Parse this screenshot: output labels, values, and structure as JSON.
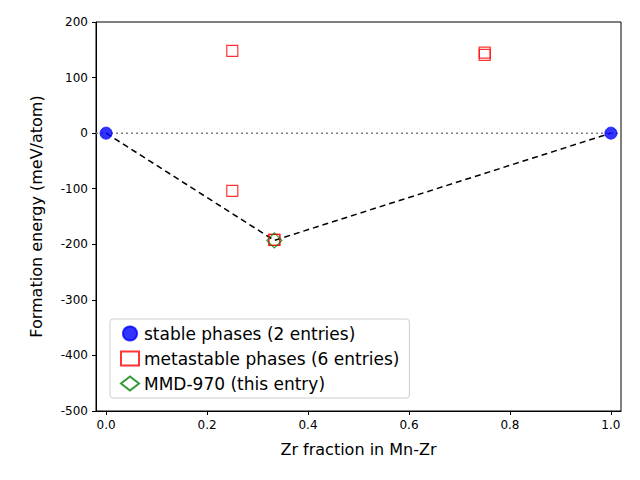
{
  "chart_data": {
    "type": "scatter",
    "x_label": "Zr fraction in Mn-Zr",
    "y_label": "Formation energy (meV/atom)",
    "xlim": [
      -0.02,
      1.02
    ],
    "xticks": [
      {
        "value": 0,
        "label": "0.0"
      },
      {
        "value": 0.2,
        "label": "0.2"
      },
      {
        "value": 0.4,
        "label": "0.4"
      },
      {
        "value": 0.6,
        "label": "0.6"
      },
      {
        "value": 0.8,
        "label": "0.8"
      },
      {
        "value": 1,
        "label": "1.0"
      }
    ],
    "ylim": [
      -500,
      200
    ],
    "yticks": [
      -500,
      -400,
      -300,
      -200,
      -100,
      0,
      100,
      200
    ],
    "grid": false,
    "legend": "lower left",
    "series": [
      {
        "type": "line",
        "color": "gray",
        "line_style": "dotted",
        "x": [
          -0.02,
          1.02
        ],
        "values": [
          0,
          0
        ]
      },
      {
        "type": "line",
        "color": "black",
        "line_style": "dashed",
        "x": [
          0,
          0.3333,
          1
        ],
        "values": [
          0,
          -193,
          0
        ]
      },
      {
        "type": "scatter",
        "name": "stable phases (2 entries)",
        "color": "#0000ff",
        "marker": "circle",
        "x": [
          0,
          1
        ],
        "values": [
          0,
          0
        ]
      },
      {
        "type": "scatter",
        "name": "metastable phases (6 entries)",
        "color": "#ff0000",
        "marker": "square_open",
        "x": [
          0.25,
          0.25,
          0.3333,
          0.3333,
          0.75,
          0.75
        ],
        "values": [
          148,
          -104,
          -192,
          -192,
          145,
          141
        ]
      },
      {
        "type": "scatter",
        "name": "MMD-970 (this entry)",
        "color": "#008000",
        "marker": "diamond_open",
        "x": [
          0.3333
        ],
        "values": [
          -193
        ]
      }
    ]
  }
}
